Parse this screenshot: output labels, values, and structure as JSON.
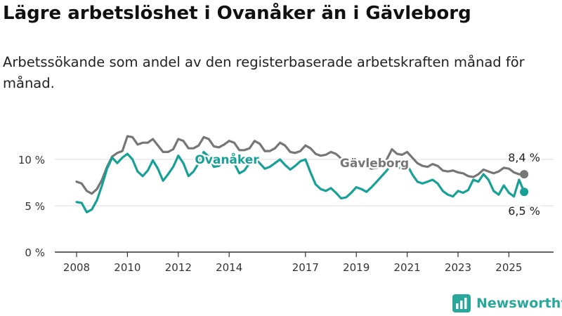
{
  "header": {
    "title": "Lägre arbetslöshet i Ovanåker än i Gävleborg",
    "subtitle": "Arbetssökande som andel av den registerbaserade arbetskraften månad för månad."
  },
  "brand": {
    "name": "Newsworthy"
  },
  "colors": {
    "ovanaker": "#16a096",
    "gavleborg": "#767676",
    "grid": "#dddddd",
    "axis": "#333333",
    "brand": "#2aa79b"
  },
  "chart_data": {
    "type": "line",
    "xlabel": "",
    "ylabel": "",
    "xlim": [
      2008,
      2026
    ],
    "ylim": [
      0,
      12
    ],
    "grid": true,
    "legend": "inline",
    "y_ticks": [
      {
        "value": 0,
        "label": "0 %"
      },
      {
        "value": 5,
        "label": "5 %"
      },
      {
        "value": 10,
        "label": "10 %"
      }
    ],
    "x_ticks": [
      {
        "value": 2008,
        "label": "2008"
      },
      {
        "value": 2010,
        "label": "2010"
      },
      {
        "value": 2012,
        "label": "2012"
      },
      {
        "value": 2014,
        "label": "2014"
      },
      {
        "value": 2017,
        "label": "2017"
      },
      {
        "value": 2019,
        "label": "2019"
      },
      {
        "value": 2021,
        "label": "2021"
      },
      {
        "value": 2023,
        "label": "2023"
      },
      {
        "value": 2025,
        "label": "2025"
      }
    ],
    "series": [
      {
        "name": "Gävleborg",
        "color": "#767676",
        "end_label": "8,4 %",
        "points": [
          [
            2008.0,
            7.6
          ],
          [
            2008.2,
            7.4
          ],
          [
            2008.4,
            6.6
          ],
          [
            2008.6,
            6.3
          ],
          [
            2008.8,
            6.8
          ],
          [
            2009.0,
            7.8
          ],
          [
            2009.2,
            9.2
          ],
          [
            2009.4,
            10.3
          ],
          [
            2009.6,
            10.7
          ],
          [
            2009.8,
            10.9
          ],
          [
            2010.0,
            12.5
          ],
          [
            2010.2,
            12.4
          ],
          [
            2010.4,
            11.6
          ],
          [
            2010.6,
            11.8
          ],
          [
            2010.8,
            11.8
          ],
          [
            2011.0,
            12.2
          ],
          [
            2011.2,
            11.5
          ],
          [
            2011.4,
            10.8
          ],
          [
            2011.6,
            10.8
          ],
          [
            2011.8,
            11.1
          ],
          [
            2012.0,
            12.2
          ],
          [
            2012.2,
            12.0
          ],
          [
            2012.4,
            11.2
          ],
          [
            2012.6,
            11.2
          ],
          [
            2012.8,
            11.5
          ],
          [
            2013.0,
            12.4
          ],
          [
            2013.2,
            12.2
          ],
          [
            2013.4,
            11.4
          ],
          [
            2013.6,
            11.3
          ],
          [
            2013.8,
            11.6
          ],
          [
            2014.0,
            12.0
          ],
          [
            2014.2,
            11.8
          ],
          [
            2014.4,
            11.0
          ],
          [
            2014.6,
            11.0
          ],
          [
            2014.8,
            11.2
          ],
          [
            2015.0,
            12.0
          ],
          [
            2015.2,
            11.7
          ],
          [
            2015.4,
            10.9
          ],
          [
            2015.6,
            10.9
          ],
          [
            2015.8,
            11.2
          ],
          [
            2016.0,
            11.8
          ],
          [
            2016.2,
            11.5
          ],
          [
            2016.4,
            10.8
          ],
          [
            2016.6,
            10.7
          ],
          [
            2016.8,
            10.9
          ],
          [
            2017.0,
            11.5
          ],
          [
            2017.2,
            11.2
          ],
          [
            2017.4,
            10.6
          ],
          [
            2017.6,
            10.4
          ],
          [
            2017.8,
            10.5
          ],
          [
            2018.0,
            10.8
          ],
          [
            2018.2,
            10.6
          ],
          [
            2018.4,
            10.1
          ],
          [
            2018.6,
            9.8
          ],
          [
            2018.8,
            9.6
          ],
          [
            2019.0,
            9.7
          ],
          [
            2019.2,
            9.5
          ],
          [
            2019.4,
            9.2
          ],
          [
            2019.6,
            9.0
          ],
          [
            2019.8,
            9.1
          ],
          [
            2020.0,
            9.5
          ],
          [
            2020.2,
            10.0
          ],
          [
            2020.4,
            11.1
          ],
          [
            2020.6,
            10.6
          ],
          [
            2020.8,
            10.5
          ],
          [
            2021.0,
            10.8
          ],
          [
            2021.2,
            10.2
          ],
          [
            2021.4,
            9.6
          ],
          [
            2021.6,
            9.3
          ],
          [
            2021.8,
            9.2
          ],
          [
            2022.0,
            9.5
          ],
          [
            2022.2,
            9.3
          ],
          [
            2022.4,
            8.8
          ],
          [
            2022.6,
            8.7
          ],
          [
            2022.8,
            8.8
          ],
          [
            2023.0,
            8.6
          ],
          [
            2023.2,
            8.5
          ],
          [
            2023.4,
            8.2
          ],
          [
            2023.6,
            8.1
          ],
          [
            2023.8,
            8.4
          ],
          [
            2024.0,
            8.9
          ],
          [
            2024.2,
            8.7
          ],
          [
            2024.4,
            8.5
          ],
          [
            2024.6,
            8.7
          ],
          [
            2024.8,
            9.1
          ],
          [
            2025.0,
            9.0
          ],
          [
            2025.2,
            8.6
          ],
          [
            2025.4,
            8.4
          ],
          [
            2025.6,
            8.4
          ]
        ]
      },
      {
        "name": "Ovanåker",
        "color": "#16a096",
        "end_label": "6,5 %",
        "points": [
          [
            2008.0,
            5.4
          ],
          [
            2008.2,
            5.3
          ],
          [
            2008.4,
            4.3
          ],
          [
            2008.6,
            4.6
          ],
          [
            2008.8,
            5.6
          ],
          [
            2009.0,
            7.2
          ],
          [
            2009.2,
            9.0
          ],
          [
            2009.4,
            10.2
          ],
          [
            2009.6,
            9.6
          ],
          [
            2009.8,
            10.2
          ],
          [
            2010.0,
            10.6
          ],
          [
            2010.2,
            10.0
          ],
          [
            2010.4,
            8.7
          ],
          [
            2010.6,
            8.2
          ],
          [
            2010.8,
            8.8
          ],
          [
            2011.0,
            9.9
          ],
          [
            2011.2,
            9.0
          ],
          [
            2011.4,
            7.7
          ],
          [
            2011.6,
            8.4
          ],
          [
            2011.8,
            9.2
          ],
          [
            2012.0,
            10.4
          ],
          [
            2012.2,
            9.6
          ],
          [
            2012.4,
            8.2
          ],
          [
            2012.6,
            8.7
          ],
          [
            2012.8,
            9.6
          ],
          [
            2013.0,
            10.8
          ],
          [
            2013.2,
            10.3
          ],
          [
            2013.4,
            9.2
          ],
          [
            2013.6,
            9.3
          ],
          [
            2013.8,
            9.8
          ],
          [
            2014.0,
            10.2
          ],
          [
            2014.2,
            9.6
          ],
          [
            2014.4,
            8.5
          ],
          [
            2014.6,
            8.8
          ],
          [
            2014.8,
            9.6
          ],
          [
            2015.0,
            10.2
          ],
          [
            2015.2,
            9.6
          ],
          [
            2015.4,
            9.0
          ],
          [
            2015.6,
            9.2
          ],
          [
            2015.8,
            9.6
          ],
          [
            2016.0,
            10.0
          ],
          [
            2016.2,
            9.4
          ],
          [
            2016.4,
            8.9
          ],
          [
            2016.6,
            9.3
          ],
          [
            2016.8,
            9.8
          ],
          [
            2017.0,
            10.0
          ],
          [
            2017.2,
            8.6
          ],
          [
            2017.4,
            7.3
          ],
          [
            2017.6,
            6.8
          ],
          [
            2017.8,
            6.6
          ],
          [
            2018.0,
            6.9
          ],
          [
            2018.2,
            6.4
          ],
          [
            2018.4,
            5.8
          ],
          [
            2018.6,
            5.9
          ],
          [
            2018.8,
            6.4
          ],
          [
            2019.0,
            7.0
          ],
          [
            2019.2,
            6.8
          ],
          [
            2019.4,
            6.5
          ],
          [
            2019.6,
            7.0
          ],
          [
            2019.8,
            7.6
          ],
          [
            2020.0,
            8.2
          ],
          [
            2020.2,
            8.8
          ],
          [
            2020.4,
            9.6
          ],
          [
            2020.6,
            9.2
          ],
          [
            2020.8,
            9.0
          ],
          [
            2021.0,
            9.4
          ],
          [
            2021.2,
            8.4
          ],
          [
            2021.4,
            7.6
          ],
          [
            2021.6,
            7.4
          ],
          [
            2021.8,
            7.6
          ],
          [
            2022.0,
            7.8
          ],
          [
            2022.2,
            7.4
          ],
          [
            2022.4,
            6.6
          ],
          [
            2022.6,
            6.2
          ],
          [
            2022.8,
            6.0
          ],
          [
            2023.0,
            6.6
          ],
          [
            2023.2,
            6.4
          ],
          [
            2023.4,
            6.7
          ],
          [
            2023.6,
            7.8
          ],
          [
            2023.8,
            7.6
          ],
          [
            2024.0,
            8.4
          ],
          [
            2024.2,
            7.8
          ],
          [
            2024.4,
            6.6
          ],
          [
            2024.6,
            6.2
          ],
          [
            2024.8,
            7.2
          ],
          [
            2025.0,
            6.4
          ],
          [
            2025.2,
            6.0
          ],
          [
            2025.4,
            7.8
          ],
          [
            2025.6,
            6.5
          ]
        ]
      }
    ]
  }
}
